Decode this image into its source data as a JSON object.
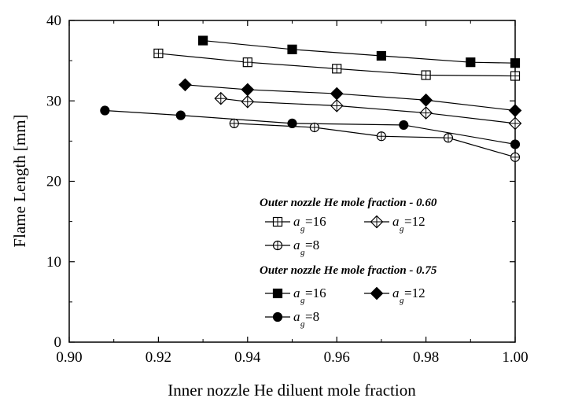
{
  "chart_data": {
    "type": "line",
    "xlabel": "Inner nozzle He diluent mole fraction",
    "ylabel": "Flame Length [mm]",
    "xlim": [
      0.9,
      1.0
    ],
    "ylim": [
      0,
      40
    ],
    "xticks": [
      "0.90",
      "0.92",
      "0.94",
      "0.96",
      "0.98",
      "1.00"
    ],
    "yticks": [
      "0",
      "10",
      "20",
      "30",
      "40"
    ],
    "legend_groups": [
      {
        "title": "Outer nozzle He mole fraction - 0.60",
        "filled": false
      },
      {
        "title": "Outer nozzle He mole fraction - 0.75",
        "filled": true
      }
    ],
    "series": [
      {
        "name": "a_g=16",
        "label_main": "a",
        "label_sub": "g",
        "label_value": "=16",
        "group": 0,
        "marker": "square",
        "filled": false,
        "x": [
          0.92,
          0.94,
          0.96,
          0.98,
          1.0
        ],
        "y": [
          35.9,
          34.8,
          34.0,
          33.2,
          33.1
        ]
      },
      {
        "name": "a_g=12",
        "label_main": "a",
        "label_sub": "g",
        "label_value": "=12",
        "group": 0,
        "marker": "diamond",
        "filled": false,
        "x": [
          0.934,
          0.94,
          0.96,
          0.98,
          1.0
        ],
        "y": [
          30.3,
          29.9,
          29.4,
          28.5,
          27.2
        ]
      },
      {
        "name": "a_g=8",
        "label_main": "a",
        "label_sub": "g",
        "label_value": "=8",
        "group": 0,
        "marker": "circle",
        "filled": false,
        "x": [
          0.937,
          0.955,
          0.97,
          0.985,
          1.0
        ],
        "y": [
          27.2,
          26.7,
          25.6,
          25.4,
          23.0
        ]
      },
      {
        "name": "a_g=16",
        "label_main": "a",
        "label_sub": "g",
        "label_value": "=16",
        "group": 1,
        "marker": "square",
        "filled": true,
        "x": [
          0.93,
          0.95,
          0.97,
          0.99,
          1.0
        ],
        "y": [
          37.5,
          36.4,
          35.6,
          34.8,
          34.7
        ]
      },
      {
        "name": "a_g=12",
        "label_main": "a",
        "label_sub": "g",
        "label_value": "=12",
        "group": 1,
        "marker": "diamond",
        "filled": true,
        "x": [
          0.926,
          0.94,
          0.96,
          0.98,
          1.0
        ],
        "y": [
          32.0,
          31.4,
          30.9,
          30.1,
          28.8
        ]
      },
      {
        "name": "a_g=8",
        "label_main": "a",
        "label_sub": "g",
        "label_value": "=8",
        "group": 1,
        "marker": "circle",
        "filled": true,
        "x": [
          0.908,
          0.925,
          0.95,
          0.975,
          1.0
        ],
        "y": [
          28.8,
          28.2,
          27.2,
          27.0,
          24.6
        ]
      }
    ],
    "legend_position": "lower-right"
  }
}
